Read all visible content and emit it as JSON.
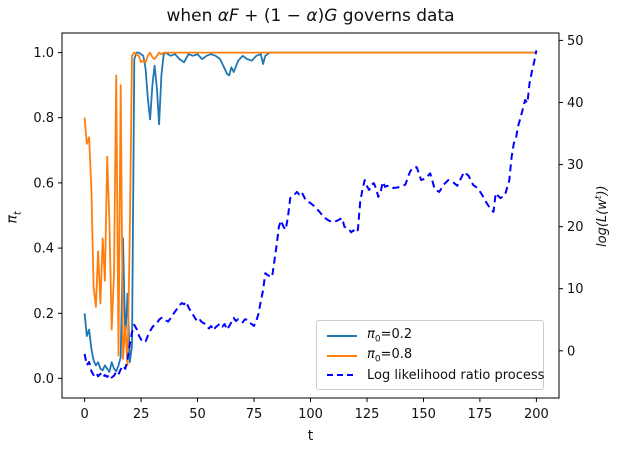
{
  "window": {
    "background": "#ffffff"
  },
  "title": {
    "text": "when αF + (1 − α)G governs data",
    "parts": [
      {
        "t": "when ",
        "i": false
      },
      {
        "t": "αF",
        "i": true
      },
      {
        "t": " + (1 − ",
        "i": false
      },
      {
        "t": "α",
        "i": true
      },
      {
        "t": ")",
        "i": false
      },
      {
        "t": "G",
        "i": true
      },
      {
        "t": " governs data",
        "i": false
      }
    ]
  },
  "axes": {
    "x": {
      "label": "t",
      "ticks": [
        0,
        25,
        50,
        75,
        100,
        125,
        150,
        175,
        200
      ]
    },
    "y_left": {
      "label_main": "π",
      "label_sub": "t",
      "ticks": [
        "0.0",
        "0.2",
        "0.4",
        "0.6",
        "0.8",
        "1.0"
      ]
    },
    "y_right": {
      "label_pre": "log(L(w",
      "label_sup": "t",
      "label_post": "))",
      "ticks": [
        0,
        10,
        20,
        30,
        40,
        50
      ]
    }
  },
  "legend": {
    "entries": [
      {
        "label": "π₀=0.2",
        "parts": [
          {
            "t": "π",
            "i": true
          },
          {
            "t": "0",
            "sub": true
          },
          {
            "t": "=0.2"
          }
        ],
        "color": "#1f77b4",
        "dash": false
      },
      {
        "label": "π₀=0.8",
        "parts": [
          {
            "t": "π",
            "i": true
          },
          {
            "t": "0",
            "sub": true
          },
          {
            "t": "=0.8"
          }
        ],
        "color": "#ff7f0e",
        "dash": false
      },
      {
        "label": "Log likelihood ratio process",
        "parts": [
          {
            "t": "Log likelihood ratio process"
          }
        ],
        "color": "#0000ff",
        "dash": true
      }
    ]
  },
  "chart_data": {
    "type": "line",
    "title": "when αF + (1 − α)G governs data",
    "xlabel": "t",
    "ylabel_left": "π_t",
    "ylabel_right": "log(L(w^t))",
    "xlim": [
      -10,
      210
    ],
    "ylim_left": [
      -0.06,
      1.06
    ],
    "ylim_right": [
      -7.6,
      51.2
    ],
    "grid": false,
    "legend_position": "lower right inside",
    "colors": {
      "pi_02": "#1f77b4",
      "pi_08": "#ff7f0e",
      "llr": "#0000ff",
      "spine": "#000000"
    },
    "series": [
      {
        "name": "π0=0.2",
        "axis": "left",
        "color": "#1f77b4",
        "style": "solid",
        "points": [
          [
            0,
            0.2
          ],
          [
            1,
            0.13
          ],
          [
            2,
            0.15
          ],
          [
            3,
            0.09
          ],
          [
            4,
            0.055
          ],
          [
            5,
            0.04
          ],
          [
            6,
            0.05
          ],
          [
            7,
            0.03
          ],
          [
            8,
            0.025
          ],
          [
            9,
            0.04
          ],
          [
            10,
            0.03
          ],
          [
            11,
            0.02
          ],
          [
            12,
            0.05
          ],
          [
            13,
            0.03
          ],
          [
            14,
            0.022
          ],
          [
            15,
            0.04
          ],
          [
            16,
            0.065
          ],
          [
            17,
            0.43
          ],
          [
            18,
            0.12
          ],
          [
            19,
            0.26
          ],
          [
            20,
            0.05
          ],
          [
            21,
            0.1
          ],
          [
            22,
            0.98
          ],
          [
            23,
            1.0
          ],
          [
            24,
            1.0
          ],
          [
            25,
            0.995
          ],
          [
            26,
            0.99
          ],
          [
            27,
            0.95
          ],
          [
            28,
            0.86
          ],
          [
            29,
            0.795
          ],
          [
            30,
            0.9
          ],
          [
            31,
            0.96
          ],
          [
            32,
            0.89
          ],
          [
            33,
            0.78
          ],
          [
            34,
            0.93
          ],
          [
            35,
            0.995
          ],
          [
            36,
            1.0
          ],
          [
            38,
            0.99
          ],
          [
            40,
            0.995
          ],
          [
            42,
            0.98
          ],
          [
            44,
            0.97
          ],
          [
            46,
            0.995
          ],
          [
            48,
            0.99
          ],
          [
            50,
            0.995
          ],
          [
            52,
            0.98
          ],
          [
            54,
            0.99
          ],
          [
            56,
            0.995
          ],
          [
            58,
            0.99
          ],
          [
            60,
            0.98
          ],
          [
            62,
            0.95
          ],
          [
            63,
            0.935
          ],
          [
            64,
            0.93
          ],
          [
            65,
            0.955
          ],
          [
            66,
            0.94
          ],
          [
            68,
            0.975
          ],
          [
            70,
            0.99
          ],
          [
            72,
            0.98
          ],
          [
            74,
            0.975
          ],
          [
            76,
            0.99
          ],
          [
            78,
            0.995
          ],
          [
            79,
            0.965
          ],
          [
            80,
            0.99
          ],
          [
            82,
            1.0
          ],
          [
            200,
            1.0
          ]
        ]
      },
      {
        "name": "π0=0.8",
        "axis": "left",
        "color": "#ff7f0e",
        "style": "solid",
        "points": [
          [
            0,
            0.8
          ],
          [
            1,
            0.72
          ],
          [
            2,
            0.74
          ],
          [
            3,
            0.58
          ],
          [
            4,
            0.28
          ],
          [
            5,
            0.22
          ],
          [
            6,
            0.39
          ],
          [
            7,
            0.23
          ],
          [
            8,
            0.43
          ],
          [
            9,
            0.3
          ],
          [
            10,
            0.68
          ],
          [
            11,
            0.48
          ],
          [
            12,
            0.15
          ],
          [
            13,
            0.32
          ],
          [
            14,
            0.93
          ],
          [
            15,
            0.07
          ],
          [
            16,
            0.9
          ],
          [
            17,
            0.06
          ],
          [
            18,
            0.16
          ],
          [
            19,
            0.04
          ],
          [
            20,
            0.45
          ],
          [
            21,
            0.99
          ],
          [
            22,
            1.0
          ],
          [
            23,
            0.995
          ],
          [
            24,
            0.99
          ],
          [
            25,
            0.97
          ],
          [
            26,
            0.975
          ],
          [
            27,
            0.97
          ],
          [
            28,
            0.99
          ],
          [
            29,
            1.0
          ],
          [
            30,
            0.985
          ],
          [
            31,
            0.98
          ],
          [
            32,
            0.99
          ],
          [
            33,
            1.0
          ],
          [
            34,
            0.995
          ],
          [
            35,
            1.0
          ],
          [
            40,
            1.0
          ],
          [
            200,
            1.0
          ]
        ]
      },
      {
        "name": "Log likelihood ratio process",
        "axis": "right",
        "color": "#0000ff",
        "style": "dashed",
        "points": [
          [
            0,
            -0.5
          ],
          [
            1,
            -2.3
          ],
          [
            2,
            -1.8
          ],
          [
            3,
            -3.3
          ],
          [
            4,
            -3.9
          ],
          [
            5,
            -3.5
          ],
          [
            6,
            -4.1
          ],
          [
            7,
            -3.7
          ],
          [
            8,
            -4.3
          ],
          [
            9,
            -3.9
          ],
          [
            10,
            -4.2
          ],
          [
            11,
            -3.8
          ],
          [
            12,
            -4.3
          ],
          [
            13,
            -4.0
          ],
          [
            14,
            -3.4
          ],
          [
            15,
            -3.8
          ],
          [
            16,
            -3.0
          ],
          [
            17,
            -2.4
          ],
          [
            18,
            -2.9
          ],
          [
            19,
            -1.4
          ],
          [
            20,
            1.0
          ],
          [
            21,
            3.0
          ],
          [
            22,
            4.2
          ],
          [
            23,
            3.5
          ],
          [
            24,
            2.5
          ],
          [
            25,
            1.8
          ],
          [
            26,
            1.4
          ],
          [
            27,
            1.5
          ],
          [
            28,
            2.4
          ],
          [
            29,
            3.2
          ],
          [
            30,
            3.8
          ],
          [
            31,
            4.2
          ],
          [
            32,
            4.5
          ],
          [
            33,
            5.0
          ],
          [
            34,
            5.3
          ],
          [
            35,
            5.3
          ],
          [
            36,
            4.9
          ],
          [
            37,
            4.7
          ],
          [
            38,
            5.2
          ],
          [
            39,
            5.8
          ],
          [
            40,
            6.3
          ],
          [
            41,
            6.8
          ],
          [
            42,
            7.3
          ],
          [
            43,
            7.7
          ],
          [
            44,
            7.5
          ],
          [
            45,
            7.9
          ],
          [
            46,
            7.0
          ],
          [
            47,
            6.4
          ],
          [
            48,
            5.8
          ],
          [
            49,
            5.2
          ],
          [
            50,
            4.7
          ],
          [
            51,
            5.0
          ],
          [
            52,
            4.6
          ],
          [
            53,
            4.4
          ],
          [
            54,
            4.2
          ],
          [
            55,
            3.6
          ],
          [
            56,
            4.0
          ],
          [
            57,
            3.3
          ],
          [
            58,
            3.8
          ],
          [
            59,
            4.1
          ],
          [
            60,
            4.4
          ],
          [
            61,
            3.9
          ],
          [
            62,
            4.3
          ],
          [
            63,
            3.4
          ],
          [
            64,
            4.0
          ],
          [
            65,
            4.6
          ],
          [
            66,
            5.3
          ],
          [
            67,
            4.8
          ],
          [
            68,
            5.1
          ],
          [
            69,
            4.8
          ],
          [
            70,
            4.6
          ],
          [
            71,
            5.1
          ],
          [
            72,
            5.0
          ],
          [
            73,
            4.5
          ],
          [
            74,
            4.3
          ],
          [
            75,
            4.0
          ],
          [
            76,
            4.8
          ],
          [
            77,
            6.0
          ],
          [
            78,
            8.0
          ],
          [
            79,
            9.8
          ],
          [
            80,
            12.5
          ],
          [
            81,
            12.2
          ],
          [
            82,
            12.0
          ],
          [
            83,
            11.9
          ],
          [
            84,
            14.5
          ],
          [
            85,
            17.0
          ],
          [
            86,
            20.0
          ],
          [
            87,
            21.0
          ],
          [
            88,
            20.0
          ],
          [
            89,
            19.5
          ],
          [
            90,
            21.5
          ],
          [
            91,
            24.6
          ],
          [
            93,
            25.2
          ],
          [
            94,
            25.6
          ],
          [
            95,
            25.2
          ],
          [
            96,
            25.6
          ],
          [
            98,
            24.2
          ],
          [
            100,
            23.8
          ],
          [
            102,
            23.2
          ],
          [
            104,
            22.4
          ],
          [
            106,
            21.5
          ],
          [
            108,
            21.0
          ],
          [
            110,
            20.7
          ],
          [
            112,
            21.0
          ],
          [
            114,
            21.4
          ],
          [
            115,
            20.0
          ],
          [
            117,
            19.6
          ],
          [
            118,
            19.1
          ],
          [
            119,
            19.4
          ],
          [
            120,
            19.0
          ],
          [
            121,
            19.5
          ],
          [
            122,
            24.0
          ],
          [
            123,
            26.0
          ],
          [
            124,
            27.5
          ],
          [
            125,
            26.5
          ],
          [
            126,
            25.9
          ],
          [
            127,
            26.8
          ],
          [
            128,
            27.0
          ],
          [
            129,
            26.2
          ],
          [
            130,
            24.8
          ],
          [
            131,
            25.5
          ],
          [
            132,
            27.2
          ],
          [
            133,
            26.4
          ],
          [
            134,
            26.6
          ],
          [
            136,
            26.2
          ],
          [
            138,
            26.3
          ],
          [
            140,
            26.4
          ],
          [
            142,
            26.8
          ],
          [
            144,
            28.8
          ],
          [
            145,
            29.4
          ],
          [
            147,
            29.6
          ],
          [
            149,
            27.5
          ],
          [
            151,
            27.8
          ],
          [
            153,
            28.6
          ],
          [
            155,
            26.0
          ],
          [
            157,
            25.6
          ],
          [
            159,
            26.8
          ],
          [
            161,
            27.5
          ],
          [
            163,
            27.2
          ],
          [
            165,
            26.6
          ],
          [
            168,
            28.8
          ],
          [
            170,
            28.2
          ],
          [
            172,
            26.7
          ],
          [
            174,
            26.2
          ],
          [
            176,
            25.1
          ],
          [
            178,
            23.8
          ],
          [
            180,
            22.7
          ],
          [
            181,
            22.4
          ],
          [
            182,
            25.4
          ],
          [
            184,
            24.6
          ],
          [
            186,
            25.0
          ],
          [
            187,
            26.2
          ],
          [
            188,
            27.5
          ],
          [
            189,
            31.2
          ],
          [
            190,
            33.4
          ],
          [
            191,
            34.4
          ],
          [
            192,
            36.3
          ],
          [
            193,
            37.6
          ],
          [
            194,
            39.0
          ],
          [
            195,
            40.4
          ],
          [
            196,
            39.9
          ],
          [
            197,
            43.2
          ],
          [
            198,
            45.0
          ],
          [
            199,
            46.5
          ],
          [
            200,
            48.4
          ]
        ]
      }
    ]
  }
}
